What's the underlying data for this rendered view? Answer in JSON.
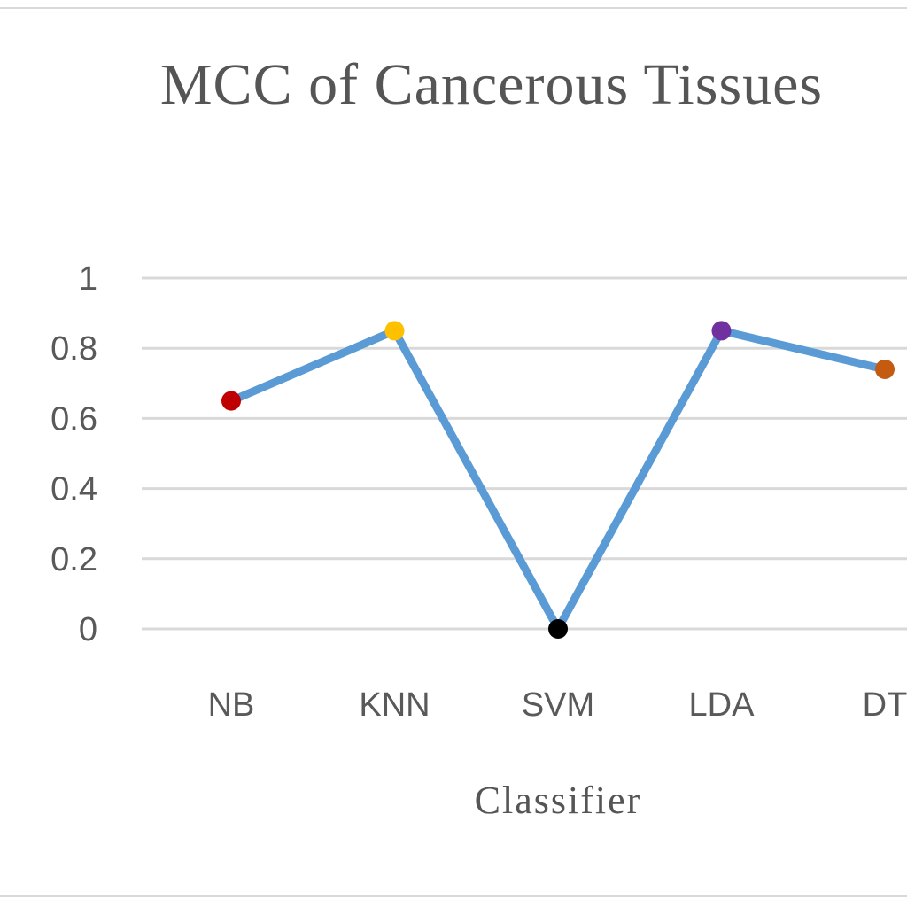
{
  "chart_data": {
    "type": "line",
    "title": "MCC of Cancerous Tissues",
    "xlabel": "Classifier",
    "ylabel": "",
    "categories": [
      "NB",
      "KNN",
      "SVM",
      "LDA",
      "DT"
    ],
    "series": [
      {
        "values": [
          0.65,
          0.85,
          0.0,
          0.85,
          0.74
        ],
        "color": "#5b9bd5",
        "marker_colors": [
          "#c00000",
          "#ffc000",
          "#000000",
          "#7030a0",
          "#c55a11"
        ]
      }
    ],
    "ylim": [
      0,
      1
    ],
    "yticks": [
      "0",
      "0.2",
      "0.4",
      "0.6",
      "0.8",
      "1"
    ],
    "grid": true,
    "legend": "none"
  }
}
